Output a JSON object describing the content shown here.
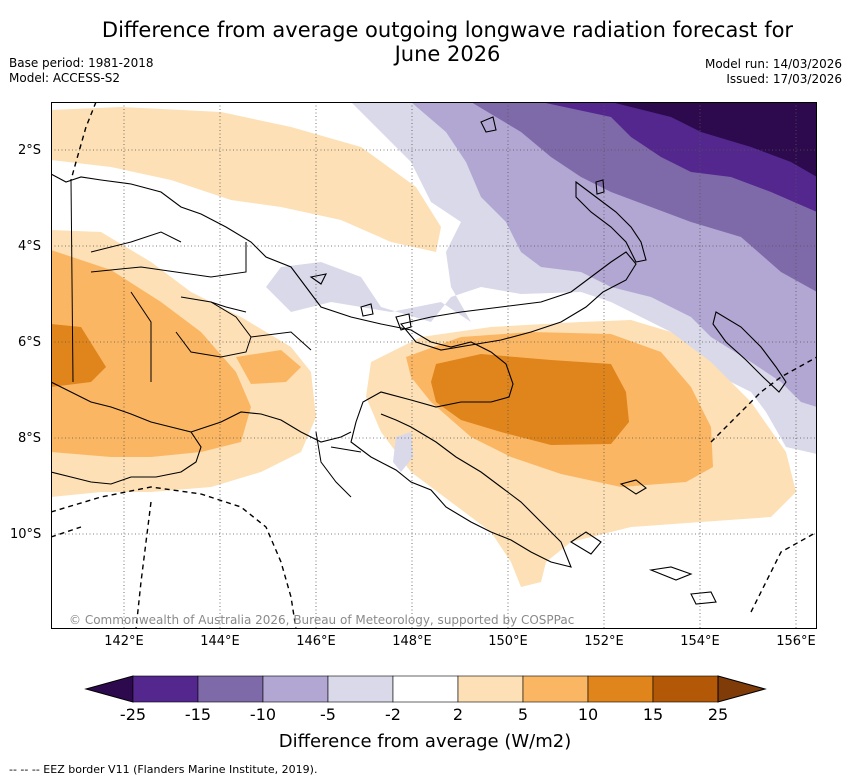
{
  "title": {
    "line1": "Difference from average outgoing longwave radiation forecast for",
    "line2": "June 2026"
  },
  "meta": {
    "base_period": "Base period: 1981-2018",
    "model": "Model: ACCESS-S2",
    "model_run": "Model run: 14/03/2026",
    "issued": "Issued: 17/03/2026"
  },
  "map": {
    "latitude_labels": [
      "2°S",
      "4°S",
      "6°S",
      "8°S",
      "10°S"
    ],
    "longitude_labels": [
      "142°E",
      "144°E",
      "146°E",
      "148°E",
      "150°E",
      "152°E",
      "154°E",
      "156°E"
    ],
    "copyright": "© Commonwealth of Australia 2026, Bureau of Meteorology, supported by COSPPac"
  },
  "colorbar": {
    "ticks": [
      "-25",
      "-15",
      "-10",
      "-5",
      "-2",
      "2",
      "5",
      "10",
      "15",
      "25"
    ],
    "label": "Difference from average (W/m2)",
    "colors": {
      "below_-25": "#2d0a4e",
      "-25_-15": "#54278f",
      "-15_-10": "#7f6aa9",
      "-10_-5": "#b1a7d2",
      "-5_-2": "#d9d9ea",
      "-2_2": "#ffffff",
      "2_5": "#fde0b5",
      "5_10": "#fbb663",
      "10_15": "#e0841c",
      "15_25": "#b35806",
      "above_25": "#7f3b08"
    }
  },
  "legend_note": "-- -- -- EEZ border V11 (Flanders Marine Institute, 2019)."
}
